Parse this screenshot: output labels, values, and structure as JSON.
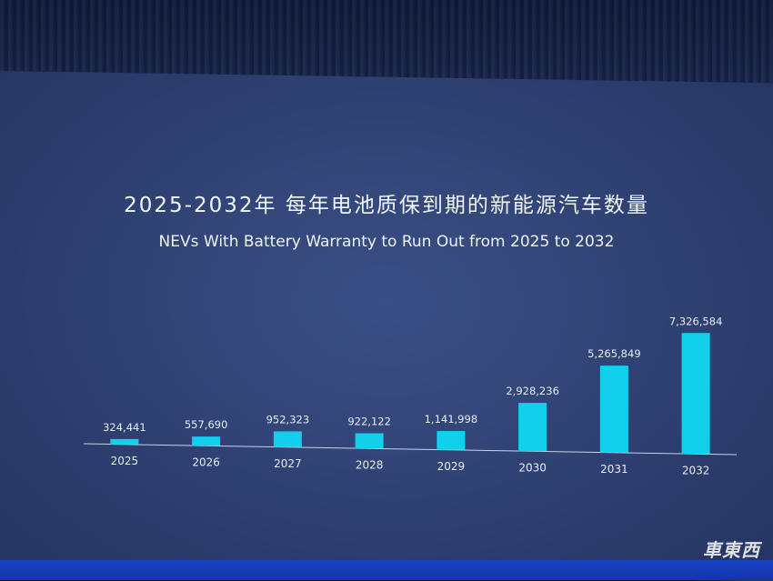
{
  "chart_data": {
    "type": "bar",
    "title": "2025-2032年 每年电池质保到期的新能源汽车数量",
    "subtitle": "NEVs With Battery Warranty to Run Out from 2025 to 2032",
    "categories": [
      "2025",
      "2026",
      "2027",
      "2028",
      "2029",
      "2030",
      "2031",
      "2032"
    ],
    "values": [
      324441,
      557690,
      952323,
      922122,
      1141998,
      2928236,
      5265849,
      7326584
    ],
    "value_labels": [
      "324,441",
      "557,690",
      "952,323",
      "922,122",
      "1,141,998",
      "2,928,236",
      "5,265,849",
      "7,326,584"
    ],
    "xlabel": "",
    "ylabel": "",
    "ylim": [
      0,
      7326584
    ],
    "grid": false,
    "legend": "none",
    "colors": {
      "bar": "#12d0ec",
      "screen": "#334679",
      "text": "#eef2fa"
    }
  },
  "watermark": "車東西"
}
